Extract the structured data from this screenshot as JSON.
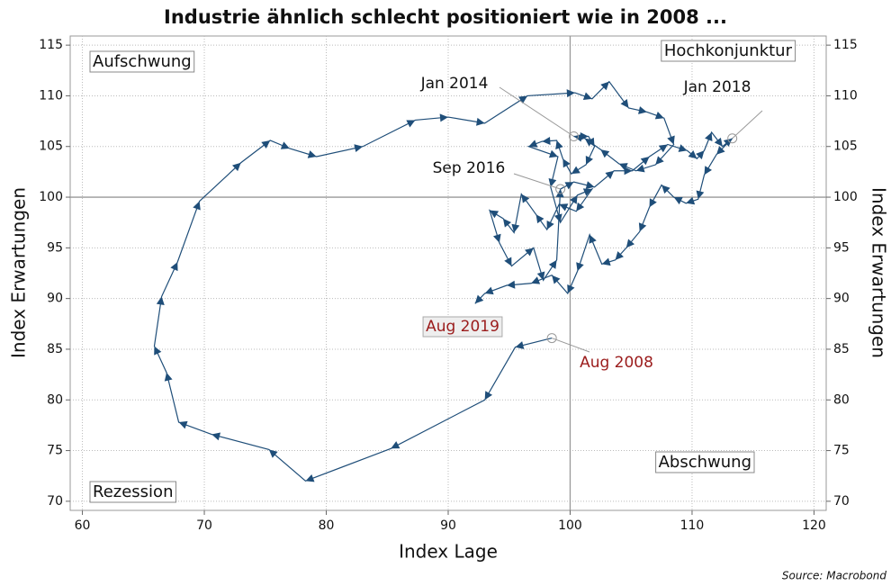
{
  "chart_data": {
    "type": "connected_scatter",
    "title": "Industrie ähnlich schlecht positioniert wie in 2008 ...",
    "xlabel": "Index Lage",
    "ylabel": "Index Erwartungen",
    "y2label": "Index Erwartungen",
    "source": "Source: Macrobond",
    "xlim": [
      59,
      121
    ],
    "ylim": [
      69.1,
      115.9
    ],
    "y2lim": [
      69.1,
      115.9
    ],
    "xticks": [
      60,
      70,
      80,
      90,
      100,
      110,
      120
    ],
    "yticks": [
      70,
      75,
      80,
      85,
      90,
      95,
      100,
      105,
      110,
      115
    ],
    "y2ticks": [
      70,
      75,
      80,
      85,
      90,
      95,
      100,
      105,
      110,
      115
    ],
    "grid": true,
    "reference_lines": {
      "x": 100,
      "y": 100
    },
    "series": [
      {
        "name": "Industrie",
        "color": "#1f4e79",
        "x": [
          98.5,
          95.5,
          93.0,
          85.3,
          78.3,
          75.3,
          70.6,
          67.9,
          66.9,
          65.9,
          66.5,
          67.8,
          69.6,
          73.0,
          75.4,
          77.0,
          79.2,
          83.0,
          87.3,
          90.0,
          93.0,
          96.5,
          100.4,
          101.8,
          103.2,
          104.8,
          106.3,
          107.7,
          108.5,
          107.0,
          105.4,
          104.0,
          102.5,
          101.2,
          100.3,
          101.5,
          102.0,
          101.3,
          100.1,
          99.4,
          98.9,
          97.7,
          96.6,
          99.0,
          98.4,
          99.2,
          100.6,
          101.8,
          100.5,
          99.1,
          98.1,
          97.2,
          96.0,
          95.4,
          94.5,
          93.4,
          94.2,
          95.2,
          97.0,
          97.8,
          98.9,
          99.2,
          100.3,
          102.0,
          103.6,
          105.1,
          106.5,
          108.0,
          109.6,
          110.4,
          111.0,
          111.6,
          112.5,
          113.3,
          112.0,
          111.0,
          110.5,
          109.5,
          108.5,
          107.5,
          106.5,
          105.7,
          104.6,
          103.7,
          102.6,
          101.6,
          100.6,
          99.8,
          98.5,
          96.8,
          94.8,
          93.0,
          92.2
        ],
        "values": [
          86.1,
          85.2,
          80.0,
          75.2,
          72.0,
          75.1,
          76.6,
          77.8,
          82.7,
          85.3,
          90.2,
          93.6,
          99.6,
          103.4,
          105.6,
          104.8,
          104.0,
          105.0,
          107.6,
          107.9,
          107.3,
          110.0,
          110.3,
          109.7,
          111.4,
          108.8,
          108.4,
          107.8,
          105.2,
          103.2,
          102.6,
          103.3,
          104.7,
          105.8,
          106.0,
          106.0,
          105.0,
          103.2,
          102.3,
          103.8,
          105.6,
          105.5,
          105.0,
          104.0,
          101.0,
          97.5,
          100.2,
          100.8,
          98.6,
          99.3,
          96.8,
          98.3,
          100.3,
          96.5,
          97.9,
          98.7,
          95.5,
          93.2,
          95.0,
          91.8,
          93.8,
          100.8,
          101.5,
          101.0,
          102.6,
          102.6,
          104.0,
          105.2,
          104.6,
          103.8,
          104.6,
          106.4,
          105.0,
          105.8,
          104.2,
          102.2,
          99.8,
          99.4,
          100.0,
          101.2,
          99.0,
          96.6,
          95.0,
          93.8,
          93.4,
          96.3,
          92.7,
          90.5,
          92.3,
          91.5,
          91.3,
          90.5,
          89.5
        ]
      }
    ],
    "annotations": [
      {
        "text": "Jan 2014",
        "x": 100.3,
        "y": 106.0,
        "color": "#111111"
      },
      {
        "text": "Jan 2018",
        "x": 113.3,
        "y": 105.8,
        "color": "#111111"
      },
      {
        "text": "Sep 2016",
        "x": 99.2,
        "y": 100.8,
        "color": "#111111"
      },
      {
        "text": "Aug 2008",
        "x": 98.5,
        "y": 86.1,
        "color": "#9b1c1c"
      }
    ],
    "end_label": {
      "text": "Aug 2019",
      "color": "#9b1c1c"
    },
    "quadrants": [
      "Aufschwung",
      "Hochkonjunktur",
      "Rezession",
      "Abschwung"
    ]
  }
}
